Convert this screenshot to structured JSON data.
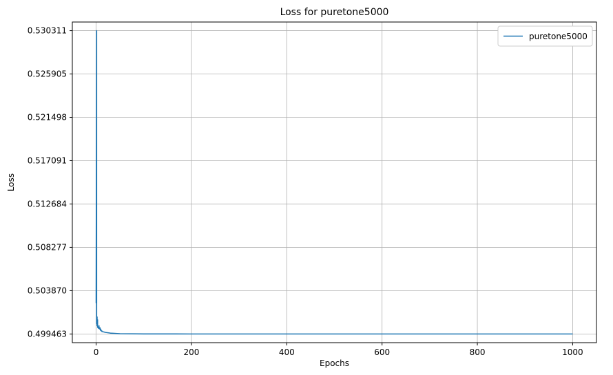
{
  "chart_data": {
    "type": "line",
    "title": "Loss for puretone5000",
    "xlabel": "Epochs",
    "ylabel": "Loss",
    "xlim": [
      -50,
      1050
    ],
    "ylim": [
      0.49858,
      0.53119
    ],
    "xticks": [
      0,
      200,
      400,
      600,
      800,
      1000
    ],
    "xtick_labels": [
      "0",
      "200",
      "400",
      "600",
      "800",
      "1000"
    ],
    "yticks": [
      0.499463,
      0.50387,
      0.508277,
      0.512684,
      0.517091,
      0.521498,
      0.525905,
      0.530311
    ],
    "ytick_labels": [
      "0.499463",
      "0.503870",
      "0.508277",
      "0.512684",
      "0.517091",
      "0.521498",
      "0.525905",
      "0.530311"
    ],
    "grid": true,
    "legend_position": "top-right",
    "series": [
      {
        "name": "puretone5000",
        "color": "#1f77b4",
        "x": [
          0,
          1,
          1,
          2,
          2,
          3,
          3,
          4,
          4,
          5,
          5,
          6,
          6,
          7,
          7,
          8,
          8,
          9,
          9,
          10,
          10,
          12,
          12,
          15,
          20,
          30,
          50,
          100,
          200,
          400,
          600,
          800,
          1000
        ],
        "y": [
          0.5026,
          0.530311,
          0.5005,
          0.5012,
          0.5003,
          0.5009,
          0.50015,
          0.5001,
          0.50015,
          0.5001,
          0.50004,
          0.5003,
          0.50002,
          0.50004,
          0.49998,
          0.5001,
          0.49995,
          0.49998,
          0.49985,
          0.49992,
          0.4998,
          0.49978,
          0.49972,
          0.49968,
          0.49962,
          0.49955,
          0.49949,
          0.49947,
          0.499464,
          0.499463,
          0.499463,
          0.499463,
          0.499463
        ]
      }
    ]
  }
}
